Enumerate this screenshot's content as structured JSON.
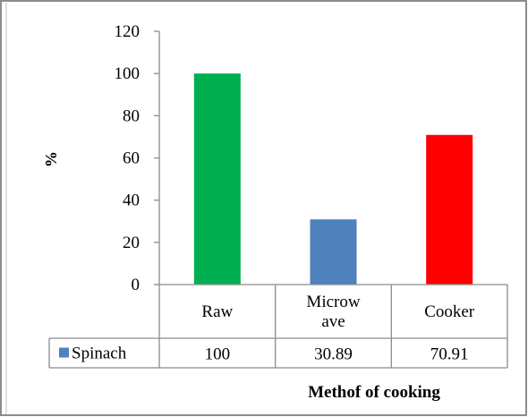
{
  "chart_data": {
    "type": "bar",
    "categories": [
      "Raw",
      "Microw\nave",
      "Cooker"
    ],
    "category_lines": [
      [
        "Raw"
      ],
      [
        "Microw",
        "ave"
      ],
      [
        "Cooker"
      ]
    ],
    "series": [
      {
        "name": "Spinach",
        "values": [
          100,
          30.89,
          70.91
        ],
        "value_labels": [
          "100",
          "30.89",
          "70.91"
        ]
      }
    ],
    "bar_colors": [
      "#00b050",
      "#4f81bd",
      "#ff0000"
    ],
    "legend_swatch_color": "#4f81bd",
    "ylabel": "%",
    "xlabel": "Methof of cooking",
    "ylim": [
      0,
      120
    ],
    "yticks": [
      0,
      20,
      40,
      60,
      80,
      100,
      120
    ],
    "grid": false,
    "legend": "data-table"
  }
}
